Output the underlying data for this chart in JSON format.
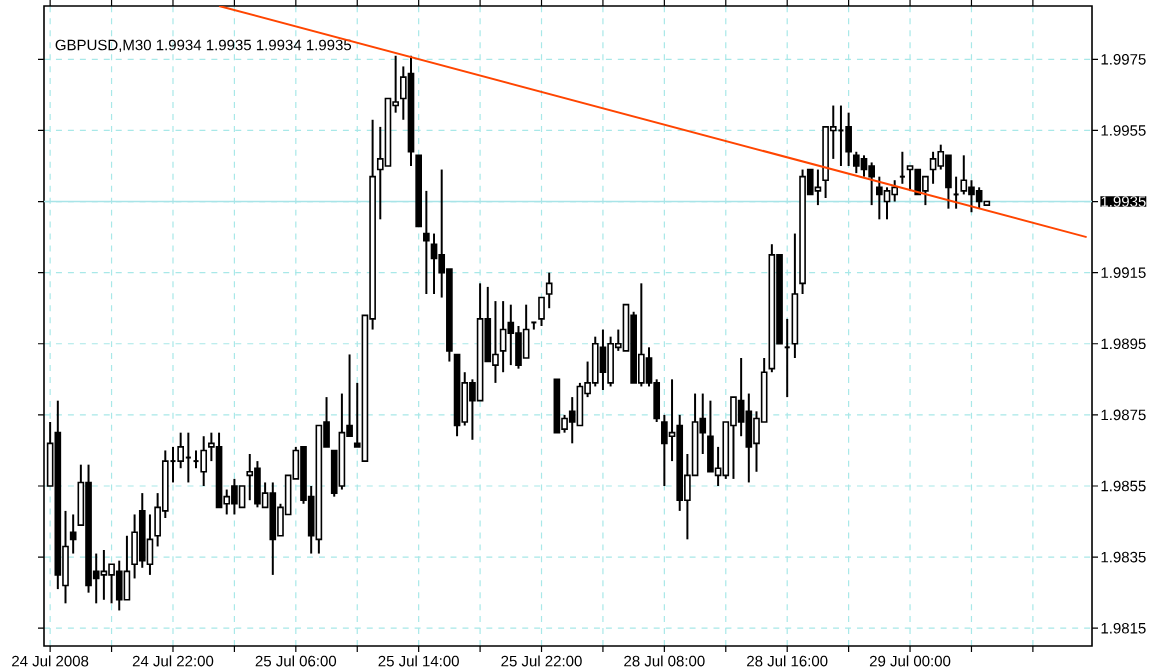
{
  "chart_data": {
    "type": "candlestick",
    "title": "GBPUSD,M30  1.9934 1.9935 1.9934 1.9935",
    "color": "#000000",
    "categories": [
      "24 Jul 2008",
      null,
      null,
      null,
      null,
      null,
      null,
      null,
      null,
      null,
      null,
      null,
      null,
      null,
      null,
      null,
      "24 Jul 22:00",
      null,
      null,
      null,
      null,
      null,
      null,
      null,
      null,
      null,
      null,
      null,
      null,
      null,
      null,
      null,
      "25 Jul 06:00",
      null,
      null,
      null,
      null,
      null,
      null,
      null,
      null,
      null,
      null,
      null,
      null,
      null,
      null,
      null,
      "25 Jul 14:00",
      null,
      null,
      null,
      null,
      null,
      null,
      null,
      null,
      null,
      null,
      null,
      null,
      null,
      null,
      null,
      "25 Jul 22:00",
      null,
      null,
      null,
      null,
      null,
      null,
      null,
      null,
      null,
      null,
      null,
      null,
      null,
      null,
      null,
      "28 Jul 08:00",
      null,
      null,
      null,
      null,
      null,
      null,
      null,
      null,
      null,
      null,
      null,
      null,
      null,
      null,
      null,
      "28 Jul 16:00",
      null,
      null,
      null,
      null,
      null,
      null,
      null,
      null,
      null,
      null,
      null,
      null,
      null,
      null,
      null,
      "29 Jul 00:00",
      null,
      null,
      null,
      null,
      null,
      null,
      null,
      null,
      null,
      null,
      null,
      null,
      null,
      null,
      null,
      null,
      null,
      null,
      null,
      null,
      null,
      null,
      null
    ],
    "ohlc": [
      [
        1.9855,
        1.9873,
        1.9855,
        1.9867
      ],
      [
        1.987,
        1.9879,
        1.9826,
        1.983
      ],
      [
        1.9827,
        1.9848,
        1.9822,
        1.9838
      ],
      [
        1.9842,
        1.9847,
        1.9836,
        1.984
      ],
      [
        1.9844,
        1.9861,
        1.9844,
        1.9856
      ],
      [
        1.9856,
        1.9861,
        1.9825,
        1.9827
      ],
      [
        1.9831,
        1.9836,
        1.9822,
        1.9829
      ],
      [
        1.983,
        1.9837,
        1.9823,
        1.9831
      ],
      [
        1.983,
        1.9833,
        1.9822,
        1.9833
      ],
      [
        1.9831,
        1.9834,
        1.982,
        1.9823
      ],
      [
        1.9823,
        1.9841,
        1.9823,
        1.9831
      ],
      [
        1.9833,
        1.9847,
        1.9829,
        1.9842
      ],
      [
        1.9848,
        1.9853,
        1.9832,
        1.9834
      ],
      [
        1.9833,
        1.9847,
        1.983,
        1.984
      ],
      [
        1.9841,
        1.9853,
        1.9838,
        1.9849
      ],
      [
        1.9848,
        1.9865,
        1.9846,
        1.9862
      ],
      [
        1.9862,
        1.9866,
        1.9856,
        1.9862
      ],
      [
        1.9862,
        1.987,
        1.986,
        1.9866
      ],
      [
        1.9863,
        1.987,
        1.9856,
        1.9863
      ],
      [
        1.9862,
        1.9865,
        1.986,
        1.9862
      ],
      [
        1.9859,
        1.9869,
        1.9855,
        1.9865
      ],
      [
        1.9866,
        1.987,
        1.9862,
        1.9867
      ],
      [
        1.9866,
        1.987,
        1.9849,
        1.9849
      ],
      [
        1.985,
        1.9854,
        1.9847,
        1.9852
      ],
      [
        1.9855,
        1.9857,
        1.9847,
        1.985
      ],
      [
        1.9849,
        1.9855,
        1.9849,
        1.9855
      ],
      [
        1.9858,
        1.9864,
        1.9851,
        1.9859
      ],
      [
        1.986,
        1.9862,
        1.9849,
        1.985
      ],
      [
        1.9849,
        1.9856,
        1.9849,
        1.9853
      ],
      [
        1.9853,
        1.9856,
        1.983,
        1.984
      ],
      [
        1.9841,
        1.985,
        1.9841,
        1.9849
      ],
      [
        1.9847,
        1.9858,
        1.9847,
        1.9858
      ],
      [
        1.9857,
        1.9866,
        1.9857,
        1.9865
      ],
      [
        1.9866,
        1.9866,
        1.985,
        1.9851
      ],
      [
        1.9852,
        1.9855,
        1.9836,
        1.9841
      ],
      [
        1.984,
        1.9872,
        1.9836,
        1.9872
      ],
      [
        1.9873,
        1.988,
        1.9866,
        1.9866
      ],
      [
        1.9865,
        1.9865,
        1.9852,
        1.9853
      ],
      [
        1.9855,
        1.9881,
        1.9854,
        1.987
      ],
      [
        1.9872,
        1.9892,
        1.9869,
        1.9869
      ],
      [
        1.9867,
        1.9884,
        1.9866,
        1.9866
      ],
      [
        1.9862,
        1.9903,
        1.9862,
        1.9903
      ],
      [
        1.9902,
        1.9958,
        1.9899,
        1.9942
      ],
      [
        1.9944,
        1.9956,
        1.993,
        1.9947
      ],
      [
        1.9945,
        1.9964,
        1.9945,
        1.9964
      ],
      [
        1.9962,
        1.9976,
        1.996,
        1.9963
      ],
      [
        1.9964,
        1.9973,
        1.9958,
        1.997
      ],
      [
        1.9971,
        1.9976,
        1.9945,
        1.9949
      ],
      [
        1.9948,
        1.9948,
        1.9928,
        1.9928
      ],
      [
        1.9926,
        1.9938,
        1.9909,
        1.9924
      ],
      [
        1.9923,
        1.9926,
        1.9909,
        1.9919
      ],
      [
        1.992,
        1.9944,
        1.9908,
        1.9915
      ],
      [
        1.9916,
        1.9916,
        1.989,
        1.9893
      ],
      [
        1.9892,
        1.9892,
        1.9869,
        1.9872
      ],
      [
        1.9873,
        1.9887,
        1.9872,
        1.9884
      ],
      [
        1.9884,
        1.9885,
        1.9868,
        1.9879
      ],
      [
        1.9879,
        1.9912,
        1.9879,
        1.9902
      ],
      [
        1.9902,
        1.9911,
        1.989,
        1.989
      ],
      [
        1.9889,
        1.9907,
        1.9884,
        1.9892
      ],
      [
        1.9893,
        1.9907,
        1.9887,
        1.9899
      ],
      [
        1.9901,
        1.9906,
        1.9889,
        1.9898
      ],
      [
        1.9898,
        1.99,
        1.9888,
        1.9889
      ],
      [
        1.9891,
        1.9906,
        1.9891,
        1.9899
      ],
      [
        1.9901,
        1.9901,
        1.9899,
        1.9901
      ],
      [
        1.9902,
        1.9908,
        1.99,
        1.9908
      ],
      [
        1.9909,
        1.9915,
        1.9905,
        1.9912
      ],
      [
        1.9885,
        1.9885,
        1.987,
        1.987
      ],
      [
        1.9871,
        1.9875,
        1.987,
        1.9874
      ],
      [
        1.9876,
        1.988,
        1.9867,
        1.9873
      ],
      [
        1.9872,
        1.9884,
        1.9872,
        1.9883
      ],
      [
        1.9881,
        1.989,
        1.988,
        1.9884
      ],
      [
        1.9884,
        1.9897,
        1.9883,
        1.9895
      ],
      [
        1.9894,
        1.9899,
        1.9882,
        1.9887
      ],
      [
        1.9884,
        1.9897,
        1.9883,
        1.9895
      ],
      [
        1.9894,
        1.9899,
        1.9893,
        1.9895
      ],
      [
        1.9893,
        1.9906,
        1.9893,
        1.9906
      ],
      [
        1.9903,
        1.9904,
        1.9884,
        1.9884
      ],
      [
        1.9884,
        1.9912,
        1.9883,
        1.9892
      ],
      [
        1.9891,
        1.9894,
        1.9883,
        1.9884
      ],
      [
        1.9884,
        1.9885,
        1.9873,
        1.9874
      ],
      [
        1.9873,
        1.9875,
        1.9855,
        1.9867
      ],
      [
        1.9869,
        1.9885,
        1.9862,
        1.987
      ],
      [
        1.9872,
        1.9875,
        1.9848,
        1.9851
      ],
      [
        1.9851,
        1.9864,
        1.984,
        1.9858
      ],
      [
        1.9858,
        1.9881,
        1.9858,
        1.9873
      ],
      [
        1.9874,
        1.9881,
        1.9864,
        1.987
      ],
      [
        1.9869,
        1.9879,
        1.9859,
        1.9859
      ],
      [
        1.9858,
        1.9866,
        1.9855,
        1.986
      ],
      [
        1.9858,
        1.9873,
        1.9857,
        1.9873
      ],
      [
        1.9872,
        1.988,
        1.9857,
        1.988
      ],
      [
        1.9879,
        1.9891,
        1.9869,
        1.9873
      ],
      [
        1.9876,
        1.9881,
        1.9856,
        1.9866
      ],
      [
        1.9867,
        1.9876,
        1.9859,
        1.9874
      ],
      [
        1.9873,
        1.9891,
        1.9873,
        1.9887
      ],
      [
        1.9888,
        1.9923,
        1.9887,
        1.992
      ],
      [
        1.992,
        1.992,
        1.9895,
        1.9895
      ],
      [
        1.9894,
        1.9902,
        1.988,
        1.9894
      ],
      [
        1.9895,
        1.9926,
        1.9891,
        1.9909
      ],
      [
        1.9912,
        1.9944,
        1.9909,
        1.9942
      ],
      [
        1.9944,
        1.9944,
        1.9937,
        1.9937
      ],
      [
        1.9938,
        1.9944,
        1.9934,
        1.9939
      ],
      [
        1.9941,
        1.9956,
        1.9936,
        1.9956
      ],
      [
        1.9955,
        1.9962,
        1.9947,
        1.9956
      ],
      [
        1.9955,
        1.9962,
        1.9945,
        1.9955
      ],
      [
        1.9956,
        1.996,
        1.9945,
        1.9949
      ],
      [
        1.9948,
        1.9949,
        1.9943,
        1.9945
      ],
      [
        1.9947,
        1.9948,
        1.9942,
        1.9944
      ],
      [
        1.9945,
        1.9946,
        1.9934,
        1.9942
      ],
      [
        1.9939,
        1.9942,
        1.993,
        1.9937
      ],
      [
        1.9935,
        1.9939,
        1.993,
        1.9938
      ],
      [
        1.9937,
        1.9941,
        1.9935,
        1.9939
      ],
      [
        1.9942,
        1.9949,
        1.994,
        1.9942
      ],
      [
        1.9944,
        1.9945,
        1.9938,
        1.9945
      ],
      [
        1.9944,
        1.9944,
        1.9937,
        1.9937
      ],
      [
        1.9938,
        1.9942,
        1.9934,
        1.9942
      ],
      [
        1.9944,
        1.9949,
        1.994,
        1.9947
      ],
      [
        1.9945,
        1.9951,
        1.9944,
        1.9949
      ],
      [
        1.9948,
        1.9948,
        1.9933,
        1.9939
      ],
      [
        1.9937,
        1.9942,
        1.9933,
        1.9937
      ],
      [
        1.9938,
        1.9948,
        1.9937,
        1.9941
      ],
      [
        1.9939,
        1.9941,
        1.9932,
        1.9937
      ],
      [
        1.9938,
        1.9939,
        1.9933,
        1.9935
      ],
      [
        1.9934,
        1.9935,
        1.9934,
        1.9935
      ],
      null,
      null,
      null,
      null,
      null,
      null,
      null,
      null,
      null,
      null,
      null,
      null,
      null
    ],
    "series": [
      {
        "type": "line",
        "color": "#ff4500",
        "values": [
          null,
          null,
          null,
          null,
          null,
          null,
          null,
          null,
          null,
          null,
          null,
          null,
          null,
          null,
          null,
          null,
          null,
          null,
          null,
          null,
          null,
          null,
          1.999,
          null,
          null,
          null,
          null,
          null,
          null,
          null,
          null,
          null,
          null,
          null,
          null,
          null,
          null,
          null,
          null,
          null,
          null,
          null,
          null,
          null,
          null,
          null,
          null,
          null,
          null,
          null,
          null,
          null,
          null,
          null,
          null,
          null,
          null,
          null,
          null,
          null,
          null,
          null,
          null,
          null,
          null,
          null,
          null,
          null,
          null,
          null,
          null,
          null,
          null,
          null,
          null,
          null,
          null,
          null,
          null,
          null,
          null,
          null,
          null,
          null,
          null,
          null,
          null,
          null,
          null,
          null,
          null,
          null,
          null,
          null,
          null,
          null,
          null,
          null,
          null,
          null,
          null,
          null,
          null,
          null,
          null,
          null,
          null,
          null,
          null,
          null,
          null,
          null,
          null,
          null,
          null,
          null,
          null,
          null,
          null,
          null,
          null,
          null,
          null,
          null,
          null,
          null,
          null,
          null,
          null,
          null,
          null,
          null,
          null,
          null,
          null,
          1.9925
        ]
      }
    ],
    "ylim": [
      1.981,
      1.999
    ],
    "yticks": [
      1.9815,
      1.9835,
      1.9855,
      1.9875,
      1.9895,
      1.9915,
      1.9935,
      1.9955,
      1.9975
    ],
    "grid": true,
    "ref_lines": [
      {
        "axis": "y",
        "value": 1.9935,
        "color": "#a8e4e8"
      }
    ]
  }
}
